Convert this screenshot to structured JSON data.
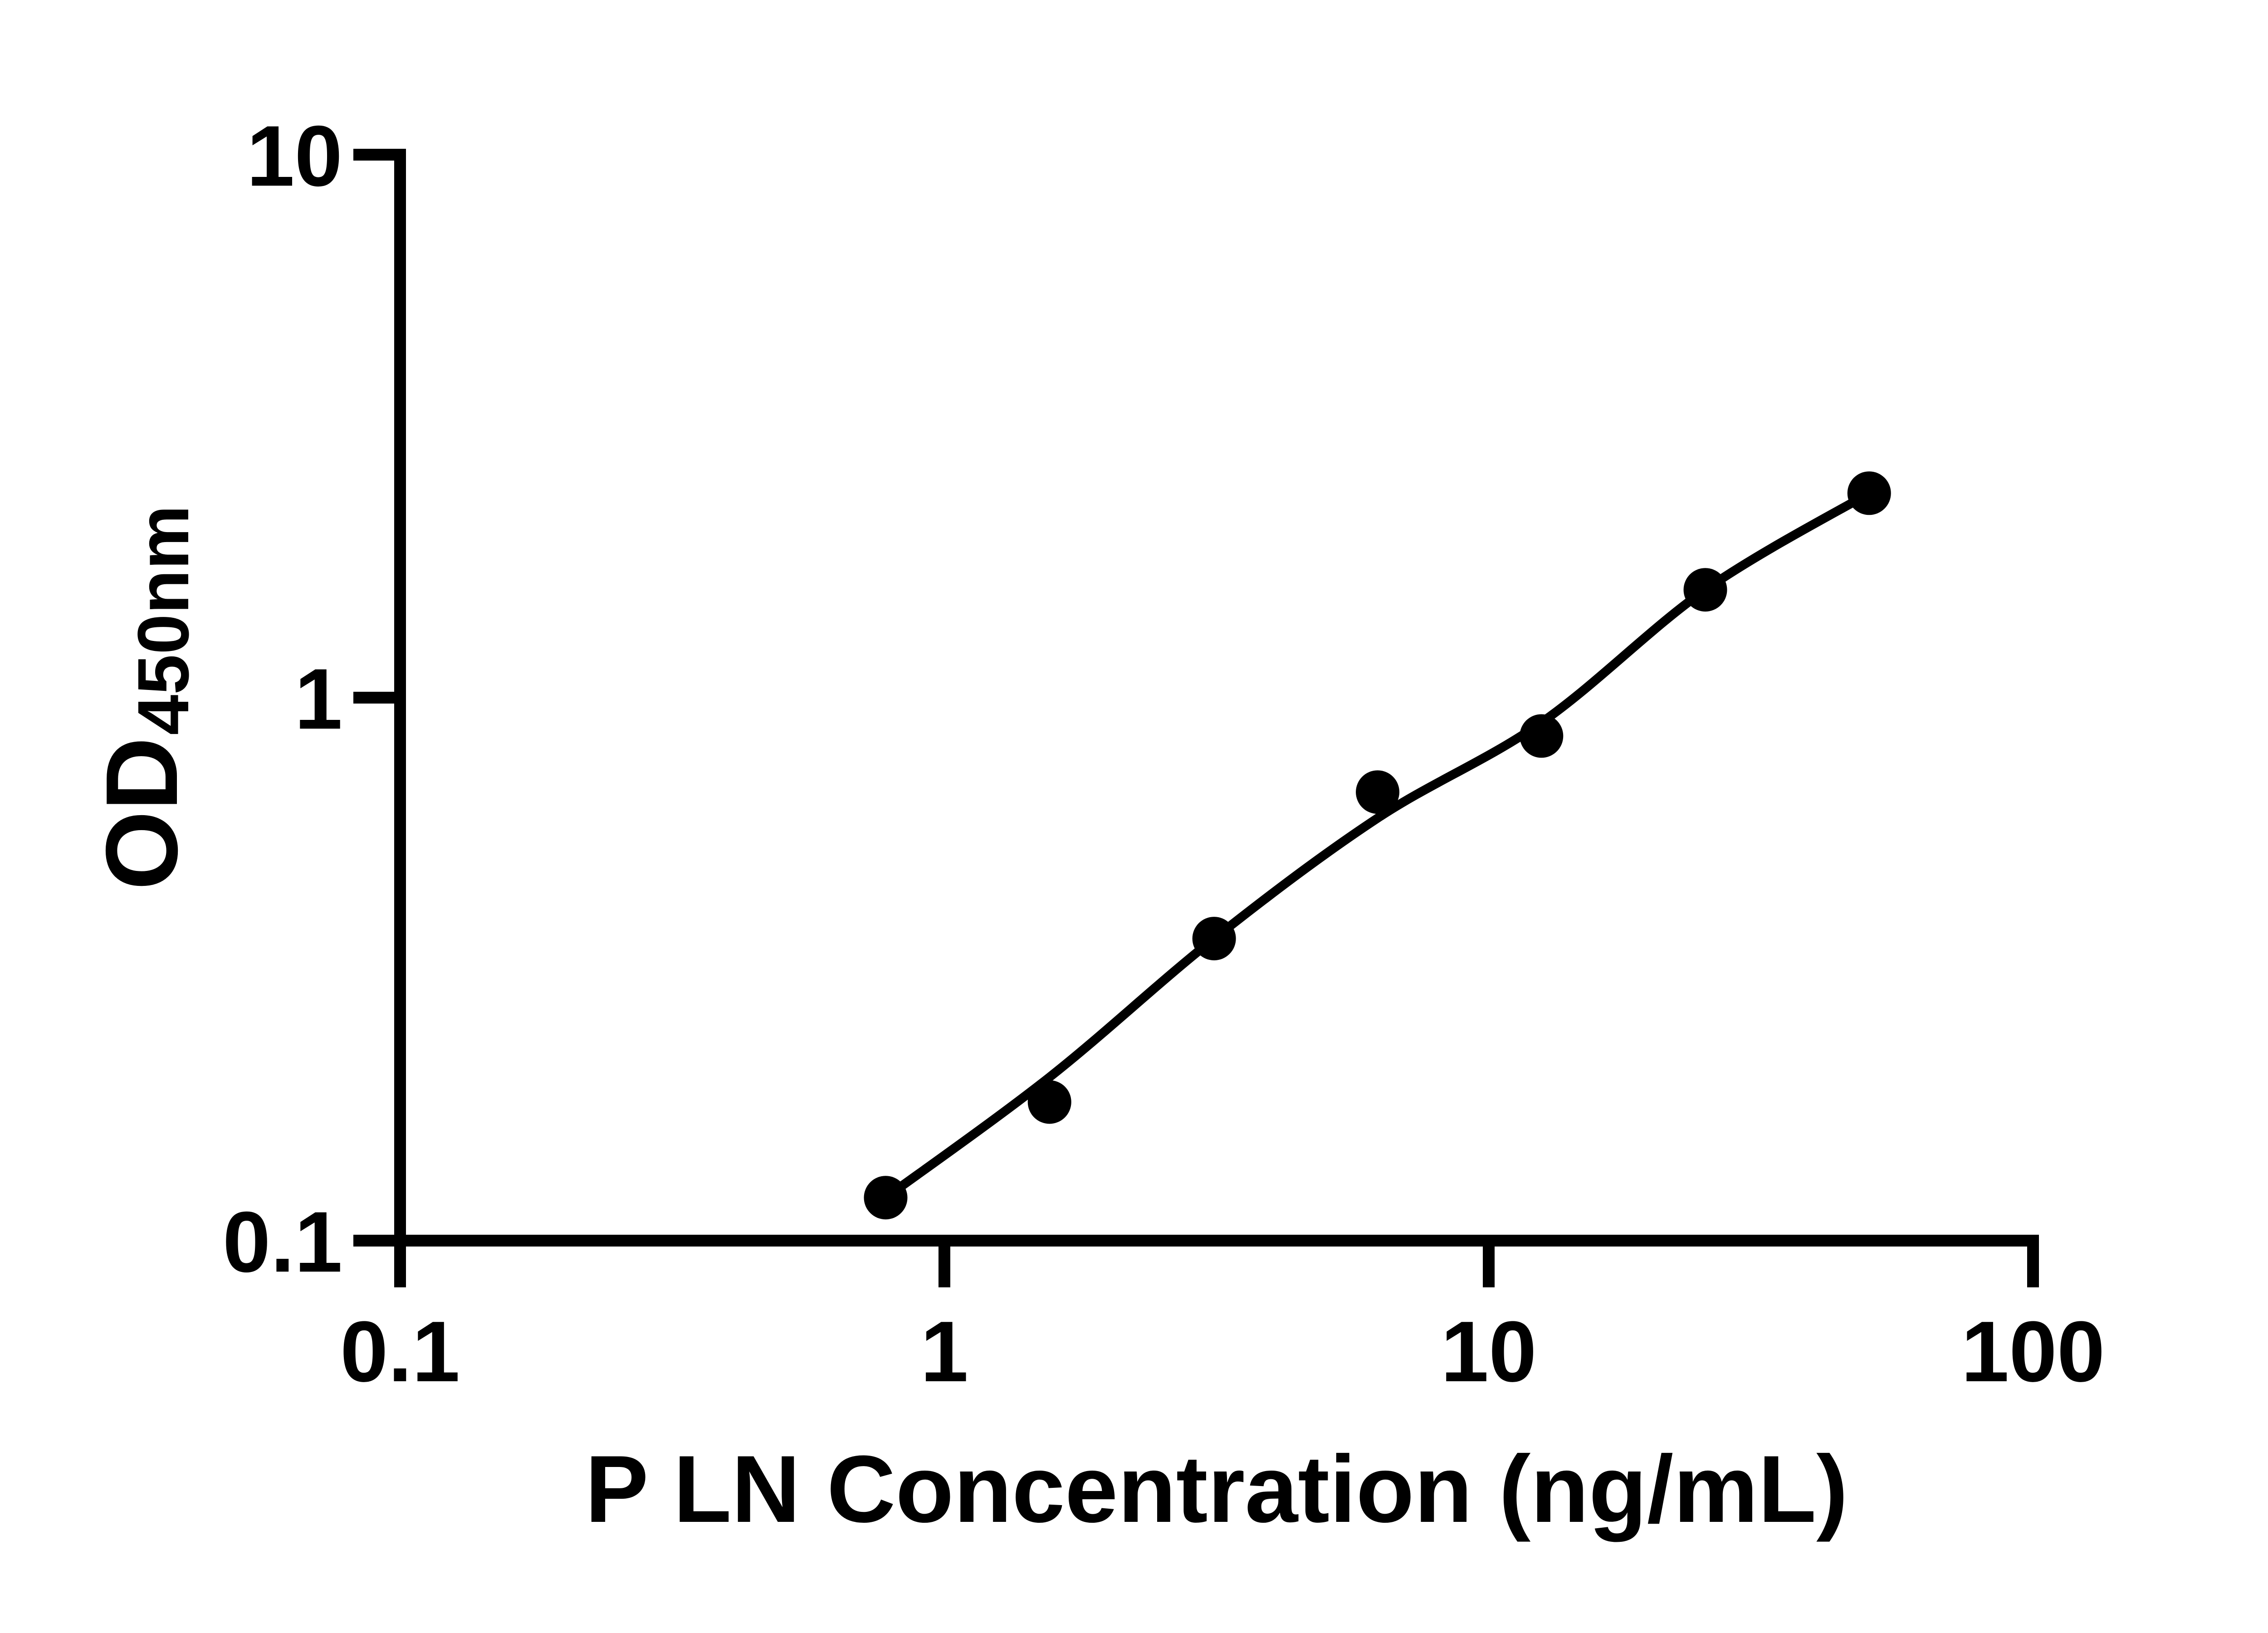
{
  "figure": {
    "background_color": "#ffffff",
    "ink_color": "#000000"
  },
  "chart_data": {
    "type": "scatter",
    "title": "",
    "xlabel": "P LN Concentration (ng/mL)",
    "ylabel": "OD",
    "ylabel_subscript": "450nm",
    "x_scale": "log10",
    "y_scale": "log10",
    "xlim": [
      0.1,
      100
    ],
    "ylim": [
      0.1,
      10
    ],
    "grid": "off",
    "legend": "none",
    "x_ticks": [
      {
        "value": 0.1,
        "label": "0.1"
      },
      {
        "value": 1,
        "label": "1"
      },
      {
        "value": 10,
        "label": "10"
      },
      {
        "value": 100,
        "label": "100"
      }
    ],
    "y_ticks": [
      {
        "value": 0.1,
        "label": "0.1"
      },
      {
        "value": 1,
        "label": "1"
      },
      {
        "value": 10,
        "label": "10"
      }
    ],
    "series": [
      {
        "name": "standard-points",
        "marker": "filled-circle",
        "color": "#000000",
        "x": [
          0.78,
          1.56,
          3.13,
          6.25,
          12.5,
          25,
          50
        ],
        "y": [
          0.12,
          0.18,
          0.36,
          0.67,
          0.85,
          1.58,
          2.38
        ]
      }
    ],
    "fit_line": {
      "name": "fitted-curve",
      "color": "#000000",
      "x": [
        0.78,
        1.56,
        3.13,
        6.25,
        12.5,
        25,
        50
      ],
      "y": [
        0.12,
        0.2,
        0.36,
        0.6,
        0.9,
        1.58,
        2.38
      ]
    }
  }
}
